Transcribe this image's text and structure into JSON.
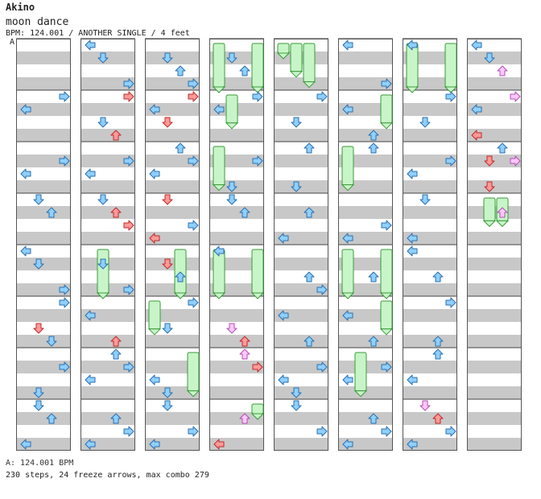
{
  "header": {
    "artist": "Akino",
    "title": "moon dance",
    "meta": "BPM: 124.001 / ANOTHER SINGLE / 4 feet"
  },
  "segment_label": "A",
  "footer": {
    "bpm_line": "A: 124.001 BPM",
    "stats_line": "230 steps, 24 freeze arrows, max combo 279"
  },
  "colors": {
    "stripe_gray": "#c8c8c8",
    "stripe_white": "#ffffff",
    "arrow_blue": "#8fd0ff",
    "arrow_blue_stroke": "#2b6fae",
    "arrow_red": "#ff9a9a",
    "arrow_red_stroke": "#c02828",
    "arrow_pink": "#ffc8ff",
    "arrow_pink_stroke": "#b050b0",
    "freeze_fill": "#c8f5c8",
    "freeze_stroke": "#3a9a3a"
  },
  "chart": {
    "columns": 8,
    "measures_per_column": 8,
    "lanes": [
      "left",
      "down",
      "up",
      "right"
    ],
    "notes": [
      [
        [
          0,
          1,
          0,
          "left",
          "blue"
        ],
        [
          0,
          1,
          3,
          "right",
          "blue"
        ],
        [
          0,
          2,
          0,
          "left",
          "blue"
        ],
        [
          0,
          2,
          3,
          "right",
          "blue"
        ],
        [
          0,
          3,
          2,
          "up",
          "blue"
        ],
        [
          0,
          3,
          1,
          "down",
          "blue"
        ],
        [
          0,
          4,
          0,
          "left",
          "blue"
        ],
        [
          0,
          4,
          1,
          "down",
          "blue"
        ],
        [
          0,
          4,
          3,
          "right",
          "blue"
        ],
        [
          0,
          5,
          1,
          "down",
          "red"
        ],
        [
          0,
          5,
          2,
          "down",
          "blue"
        ],
        [
          0,
          5,
          3,
          "right",
          "blue"
        ],
        [
          0,
          6,
          3,
          "right",
          "blue"
        ],
        [
          0,
          6,
          1,
          "down",
          "blue"
        ],
        [
          0,
          7,
          0,
          "left",
          "blue"
        ],
        [
          0,
          7,
          2,
          "up",
          "blue"
        ],
        [
          0,
          7,
          1,
          "down",
          "blue"
        ]
      ],
      [
        [
          1,
          0,
          0,
          "left",
          "blue"
        ],
        [
          1,
          0,
          1,
          "down",
          "blue"
        ],
        [
          1,
          0,
          3,
          "right",
          "blue"
        ],
        [
          1,
          1,
          2,
          "up",
          "red"
        ],
        [
          1,
          1,
          3,
          "right",
          "red"
        ],
        [
          1,
          1,
          1,
          "down",
          "blue"
        ],
        [
          1,
          2,
          0,
          "left",
          "blue"
        ],
        [
          1,
          2,
          3,
          "right",
          "blue"
        ],
        [
          1,
          3,
          1,
          "down",
          "blue"
        ],
        [
          1,
          3,
          2,
          "up",
          "red"
        ],
        [
          1,
          3,
          3,
          "right",
          "red"
        ],
        [
          1,
          4,
          1,
          "down",
          "blue"
        ],
        [
          1,
          4,
          3,
          "right",
          "blue"
        ],
        [
          1,
          5,
          2,
          "up",
          "red"
        ],
        [
          1,
          5,
          0,
          "left",
          "blue"
        ],
        [
          1,
          6,
          0,
          "left",
          "blue"
        ],
        [
          1,
          6,
          2,
          "up",
          "blue"
        ],
        [
          1,
          6,
          3,
          "right",
          "blue"
        ],
        [
          1,
          7,
          0,
          "left",
          "blue"
        ],
        [
          1,
          7,
          2,
          "up",
          "blue"
        ],
        [
          1,
          7,
          3,
          "right",
          "blue"
        ]
      ],
      [
        [
          2,
          0,
          1,
          "down",
          "blue"
        ],
        [
          2,
          0,
          2,
          "up",
          "blue"
        ],
        [
          2,
          0,
          3,
          "right",
          "blue"
        ],
        [
          2,
          1,
          1,
          "down",
          "red"
        ],
        [
          2,
          1,
          3,
          "right",
          "red"
        ],
        [
          2,
          1,
          0,
          "left",
          "blue"
        ],
        [
          2,
          2,
          0,
          "left",
          "blue"
        ],
        [
          2,
          2,
          2,
          "up",
          "blue"
        ],
        [
          2,
          2,
          3,
          "right",
          "blue"
        ],
        [
          2,
          3,
          1,
          "down",
          "red"
        ],
        [
          2,
          3,
          0,
          "left",
          "red"
        ],
        [
          2,
          3,
          3,
          "right",
          "blue"
        ],
        [
          2,
          4,
          1,
          "down",
          "red"
        ],
        [
          2,
          4,
          2,
          "up",
          "blue"
        ],
        [
          2,
          5,
          1,
          "down",
          "blue"
        ],
        [
          2,
          5,
          3,
          "right",
          "blue"
        ],
        [
          2,
          6,
          0,
          "left",
          "blue"
        ],
        [
          2,
          6,
          1,
          "down",
          "blue"
        ],
        [
          2,
          7,
          0,
          "left",
          "blue"
        ],
        [
          2,
          7,
          3,
          "right",
          "blue"
        ],
        [
          2,
          7,
          1,
          "down",
          "blue"
        ]
      ],
      [
        [
          3,
          0,
          1,
          "down",
          "blue"
        ],
        [
          3,
          0,
          2,
          "up",
          "blue"
        ],
        [
          3,
          1,
          0,
          "left",
          "blue"
        ],
        [
          3,
          1,
          3,
          "right",
          "blue"
        ],
        [
          3,
          2,
          1,
          "down",
          "blue"
        ],
        [
          3,
          2,
          3,
          "right",
          "blue"
        ],
        [
          3,
          3,
          1,
          "down",
          "blue"
        ],
        [
          3,
          3,
          2,
          "up",
          "blue"
        ],
        [
          3,
          4,
          0,
          "left",
          "blue"
        ],
        [
          3,
          5,
          1,
          "down",
          "pink"
        ],
        [
          3,
          5,
          2,
          "up",
          "red"
        ],
        [
          3,
          6,
          2,
          "up",
          "pink"
        ],
        [
          3,
          6,
          3,
          "right",
          "red"
        ],
        [
          3,
          7,
          0,
          "left",
          "red"
        ],
        [
          3,
          7,
          2,
          "up",
          "pink"
        ]
      ],
      [
        [
          4,
          1,
          1,
          "down",
          "blue"
        ],
        [
          4,
          1,
          3,
          "right",
          "blue"
        ],
        [
          4,
          2,
          1,
          "down",
          "blue"
        ],
        [
          4,
          2,
          2,
          "up",
          "blue"
        ],
        [
          4,
          3,
          0,
          "left",
          "blue"
        ],
        [
          4,
          3,
          2,
          "up",
          "blue"
        ],
        [
          4,
          4,
          2,
          "up",
          "blue"
        ],
        [
          4,
          4,
          3,
          "right",
          "blue"
        ],
        [
          4,
          5,
          0,
          "left",
          "blue"
        ],
        [
          4,
          5,
          2,
          "up",
          "blue"
        ],
        [
          4,
          6,
          0,
          "left",
          "blue"
        ],
        [
          4,
          6,
          1,
          "down",
          "blue"
        ],
        [
          4,
          6,
          3,
          "right",
          "blue"
        ],
        [
          4,
          7,
          1,
          "down",
          "blue"
        ],
        [
          4,
          7,
          3,
          "right",
          "blue"
        ]
      ],
      [
        [
          5,
          0,
          0,
          "left",
          "blue"
        ],
        [
          5,
          0,
          3,
          "right",
          "blue"
        ],
        [
          5,
          1,
          2,
          "up",
          "blue"
        ],
        [
          5,
          1,
          0,
          "left",
          "blue"
        ],
        [
          5,
          2,
          2,
          "up",
          "blue"
        ],
        [
          5,
          3,
          0,
          "left",
          "blue"
        ],
        [
          5,
          3,
          3,
          "right",
          "blue"
        ],
        [
          5,
          4,
          2,
          "up",
          "blue"
        ],
        [
          5,
          5,
          0,
          "left",
          "blue"
        ],
        [
          5,
          5,
          2,
          "up",
          "blue"
        ],
        [
          5,
          6,
          0,
          "left",
          "blue"
        ],
        [
          5,
          6,
          3,
          "right",
          "blue"
        ],
        [
          5,
          7,
          0,
          "left",
          "blue"
        ],
        [
          5,
          7,
          2,
          "up",
          "blue"
        ],
        [
          5,
          7,
          3,
          "right",
          "blue"
        ]
      ],
      [
        [
          6,
          0,
          0,
          "left",
          "blue"
        ],
        [
          6,
          1,
          1,
          "down",
          "blue"
        ],
        [
          6,
          1,
          3,
          "right",
          "blue"
        ],
        [
          6,
          2,
          0,
          "left",
          "blue"
        ],
        [
          6,
          2,
          3,
          "right",
          "blue"
        ],
        [
          6,
          3,
          1,
          "down",
          "blue"
        ],
        [
          6,
          3,
          0,
          "left",
          "blue"
        ],
        [
          6,
          4,
          2,
          "up",
          "blue"
        ],
        [
          6,
          4,
          0,
          "left",
          "blue"
        ],
        [
          6,
          5,
          2,
          "up",
          "blue"
        ],
        [
          6,
          5,
          3,
          "right",
          "blue"
        ],
        [
          6,
          6,
          2,
          "up",
          "blue"
        ],
        [
          6,
          6,
          0,
          "left",
          "blue"
        ],
        [
          6,
          7,
          0,
          "left",
          "blue"
        ],
        [
          6,
          7,
          1,
          "down",
          "pink"
        ],
        [
          6,
          7,
          2,
          "up",
          "red"
        ],
        [
          6,
          7,
          3,
          "right",
          "blue"
        ]
      ],
      [
        [
          7,
          0,
          1,
          "down",
          "blue"
        ],
        [
          7,
          0,
          2,
          "up",
          "pink"
        ],
        [
          7,
          0,
          0,
          "left",
          "blue"
        ],
        [
          7,
          1,
          0,
          "left",
          "blue"
        ],
        [
          7,
          1,
          3,
          "right",
          "pink"
        ],
        [
          7,
          1,
          0,
          "left",
          "red"
        ],
        [
          7,
          2,
          1,
          "down",
          "red"
        ],
        [
          7,
          2,
          2,
          "up",
          "blue"
        ],
        [
          7,
          2,
          3,
          "right",
          "pink"
        ],
        [
          7,
          2,
          1,
          "down",
          "red"
        ],
        [
          7,
          3,
          2,
          "up",
          "pink"
        ]
      ]
    ],
    "freezes": [
      [
        1,
        4,
        1,
        1.0
      ],
      [
        2,
        4,
        2,
        1.0
      ],
      [
        2,
        5,
        0,
        0.7
      ],
      [
        2,
        6,
        3,
        0.9
      ],
      [
        3,
        0,
        0,
        1.0
      ],
      [
        3,
        0,
        3,
        1.0
      ],
      [
        3,
        1,
        1,
        0.7
      ],
      [
        3,
        2,
        0,
        0.9
      ],
      [
        3,
        4,
        0,
        1.0
      ],
      [
        3,
        4,
        3,
        1.0
      ],
      [
        4,
        0,
        0,
        0.3
      ],
      [
        4,
        0,
        1,
        0.7
      ],
      [
        4,
        0,
        2,
        0.9
      ],
      [
        5,
        1,
        3,
        0.7
      ],
      [
        5,
        2,
        0,
        0.9
      ],
      [
        5,
        4,
        0,
        1.0
      ],
      [
        5,
        4,
        3,
        1.0
      ],
      [
        5,
        5,
        3,
        0.7
      ],
      [
        5,
        6,
        1,
        0.9
      ],
      [
        6,
        0,
        0,
        1.0
      ],
      [
        6,
        0,
        3,
        1.0
      ],
      [
        7,
        3,
        1,
        0.6
      ],
      [
        7,
        3,
        2,
        0.6
      ],
      [
        3,
        7,
        3,
        0.3
      ]
    ]
  }
}
